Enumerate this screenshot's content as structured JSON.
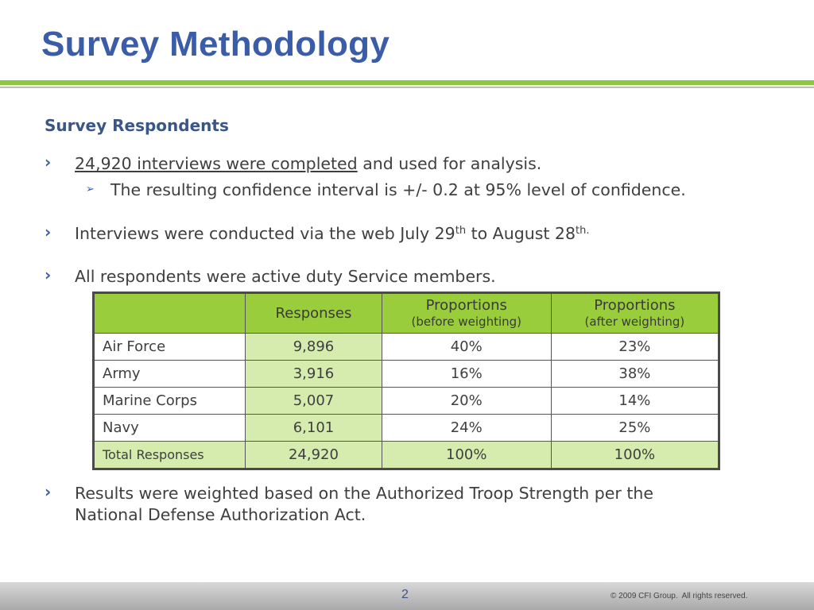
{
  "slide": {
    "title": "Survey Methodology",
    "subtitle": "Survey Respondents",
    "page_number": "2",
    "copyright": "© 2009 CFI Group.  All rights reserved.",
    "colors": {
      "title": "#3b5ca7",
      "accent_green": "#8dc63f",
      "header_green": "#9acd3c",
      "light_green": "#d6ebae"
    }
  },
  "bullets": {
    "b1_underlined": "24,920 interviews were completed",
    "b1_rest": " and used for analysis.",
    "b1_sub": "The resulting confidence interval is +/- 0.2 at 95% level of confidence.",
    "b2_text": "Interviews were conducted via the web July 29",
    "b2_sup1": "th",
    "b2_mid": " to August 28",
    "b2_sup2": "th.",
    "b3": "All respondents were active duty Service members.",
    "b4_line1": "Results were weighted based on the Authorized Troop Strength per the",
    "b4_line2": "National Defense Authorization Act."
  },
  "table": {
    "headers": {
      "col1": "",
      "col2": "Responses",
      "col3_main": "Proportions",
      "col3_sub": "(before weighting)",
      "col4_main": "Proportions",
      "col4_sub": "(after weighting)"
    },
    "rows": [
      {
        "label": "Air Force",
        "responses": "9,896",
        "before": "40%",
        "after": "23%"
      },
      {
        "label": "Army",
        "responses": "3,916",
        "before": "16%",
        "after": "38%"
      },
      {
        "label": "Marine Corps",
        "responses": "5,007",
        "before": "20%",
        "after": "14%"
      },
      {
        "label": "Navy",
        "responses": "6,101",
        "before": "24%",
        "after": "25%"
      }
    ],
    "total": {
      "label": "Total Responses",
      "responses": "24,920",
      "before": "100%",
      "after": "100%"
    }
  }
}
